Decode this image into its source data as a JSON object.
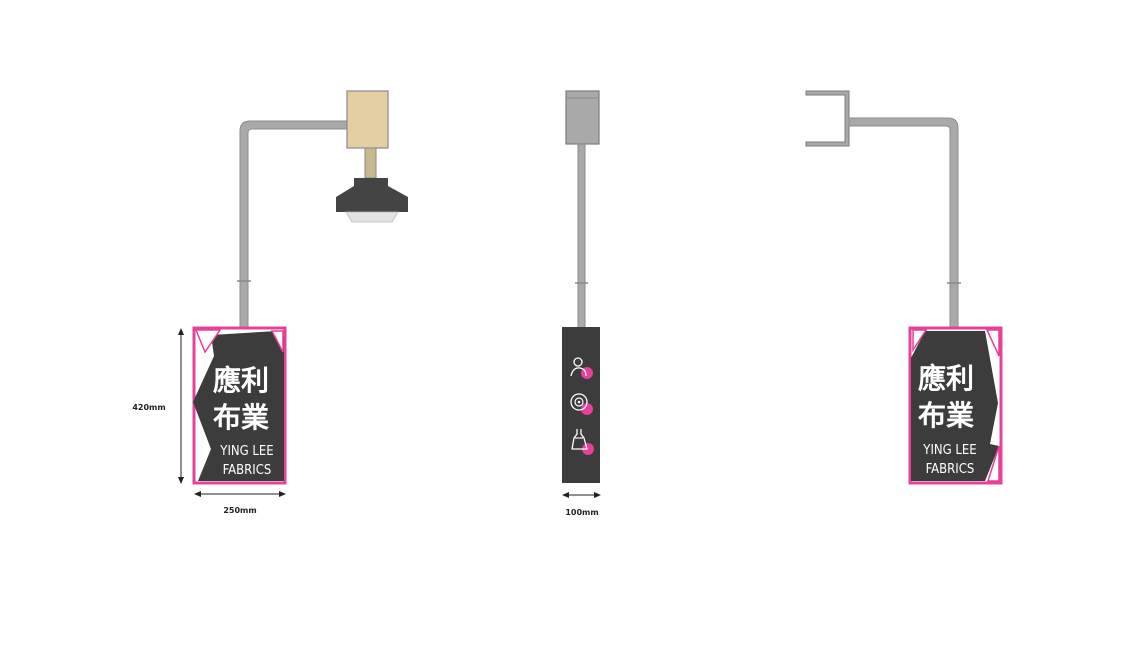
{
  "sign": {
    "chinese_line1": "應利",
    "chinese_line2": "布業",
    "english_line1": "YING LEE",
    "english_line2": "FABRICS"
  },
  "dimensions": {
    "height_label": "420mm",
    "width_label": "250mm",
    "depth_label": "100mm"
  },
  "side_view": {
    "icons": [
      "person-fabric-icon",
      "fabric-roll-icon",
      "dress-icon"
    ]
  },
  "colors": {
    "pink": "#e6409a",
    "sign_dark": "#3c3c3c",
    "pole": "#a9a9a9",
    "bracket_tan": "#e4cfa4",
    "lamp_dark": "#444444"
  }
}
